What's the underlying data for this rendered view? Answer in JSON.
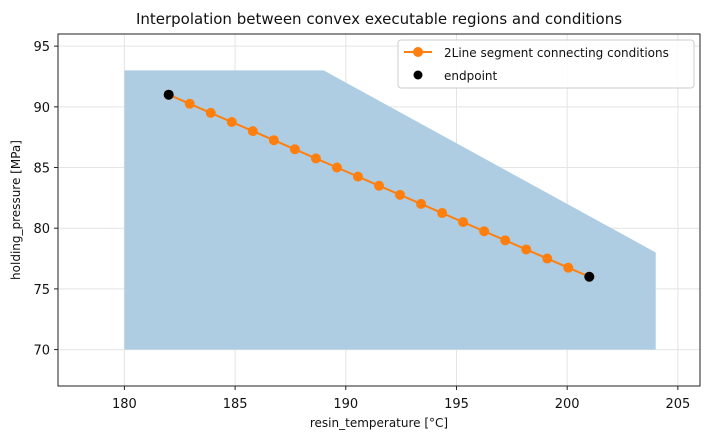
{
  "chart_data": {
    "type": "line",
    "title": "Interpolation between convex executable regions and conditions",
    "xlabel": "resin_temperature [°C]",
    "ylabel": "holding_pressure [MPa]",
    "xlim": [
      177,
      206
    ],
    "ylim": [
      67,
      96
    ],
    "xticks": [
      180,
      185,
      190,
      195,
      200,
      205
    ],
    "yticks": [
      70,
      75,
      80,
      85,
      90,
      95
    ],
    "grid": true,
    "legend_position": "top-right",
    "region": {
      "color": "#aecde3",
      "polygon": [
        [
          180,
          70
        ],
        [
          180,
          93
        ],
        [
          189,
          93
        ],
        [
          204,
          78
        ],
        [
          204,
          70
        ]
      ]
    },
    "series": [
      {
        "name": "2Line segment connecting conditions",
        "type": "line",
        "color": "#ff7f0e",
        "marker": "circle",
        "x": [
          182.0,
          182.95,
          183.9,
          184.85,
          185.8,
          186.75,
          187.7,
          188.65,
          189.6,
          190.55,
          191.5,
          192.45,
          193.4,
          194.35,
          195.3,
          196.25,
          197.2,
          198.15,
          199.1,
          200.05,
          201.0
        ],
        "y": [
          91.0,
          90.25,
          89.5,
          88.75,
          88.0,
          87.25,
          86.5,
          85.75,
          85.0,
          84.25,
          83.5,
          82.75,
          82.0,
          81.25,
          80.5,
          79.75,
          79.0,
          78.25,
          77.5,
          76.75,
          76.0
        ]
      },
      {
        "name": "endpoint",
        "type": "scatter",
        "color": "#000000",
        "marker": "circle",
        "x": [
          182,
          201
        ],
        "y": [
          91,
          76
        ]
      }
    ]
  }
}
